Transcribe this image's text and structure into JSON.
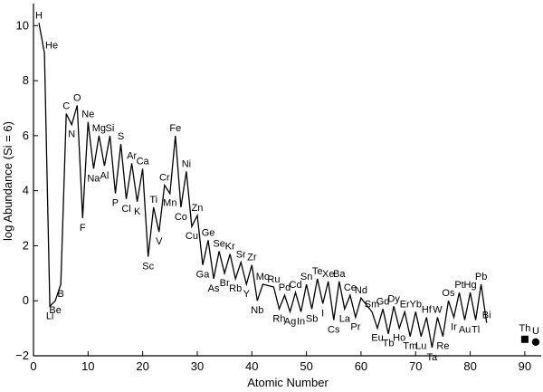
{
  "chart_data": {
    "type": "line",
    "title": "",
    "xlabel": "Atomic Number",
    "ylabel": "log Abundance (Si = 6)",
    "xlim": [
      0,
      93
    ],
    "ylim": [
      -2,
      10.8
    ],
    "x_ticks": [
      0,
      10,
      20,
      30,
      40,
      50,
      60,
      70,
      80,
      90
    ],
    "y_ticks": [
      -2,
      0,
      2,
      4,
      6,
      8,
      10
    ],
    "grid": false,
    "legend": "none",
    "series": [
      {
        "points": [
          {
            "z": 1,
            "el": "H",
            "y": 10.1
          },
          {
            "z": 2,
            "el": "He",
            "y": 9.0
          },
          {
            "z": 3,
            "el": "Li",
            "y": -0.2
          },
          {
            "z": 4,
            "el": "Be",
            "y": 0.0
          },
          {
            "z": 5,
            "el": "B",
            "y": 0.6
          },
          {
            "z": 6,
            "el": "C",
            "y": 6.8
          },
          {
            "z": 7,
            "el": "N",
            "y": 6.4
          },
          {
            "z": 8,
            "el": "O",
            "y": 7.1
          },
          {
            "z": 9,
            "el": "F",
            "y": 3.0
          },
          {
            "z": 10,
            "el": "Ne",
            "y": 6.5
          },
          {
            "z": 11,
            "el": "Na",
            "y": 4.8
          },
          {
            "z": 12,
            "el": "Mg",
            "y": 6.0
          },
          {
            "z": 13,
            "el": "Al",
            "y": 4.9
          },
          {
            "z": 14,
            "el": "Si",
            "y": 6.0
          },
          {
            "z": 15,
            "el": "P",
            "y": 3.9
          },
          {
            "z": 16,
            "el": "S",
            "y": 5.7
          },
          {
            "z": 17,
            "el": "Cl",
            "y": 3.7
          },
          {
            "z": 18,
            "el": "Ar",
            "y": 5.0
          },
          {
            "z": 19,
            "el": "K",
            "y": 3.6
          },
          {
            "z": 20,
            "el": "Ca",
            "y": 4.8
          },
          {
            "z": 21,
            "el": "Sc",
            "y": 1.6
          },
          {
            "z": 22,
            "el": "Ti",
            "y": 3.4
          },
          {
            "z": 23,
            "el": "V",
            "y": 2.5
          },
          {
            "z": 24,
            "el": "Cr",
            "y": 4.2
          },
          {
            "z": 25,
            "el": "Mn",
            "y": 3.9
          },
          {
            "z": 26,
            "el": "Fe",
            "y": 6.0
          },
          {
            "z": 27,
            "el": "Co",
            "y": 3.4
          },
          {
            "z": 28,
            "el": "Ni",
            "y": 4.7
          },
          {
            "z": 29,
            "el": "Cu",
            "y": 2.7
          },
          {
            "z": 30,
            "el": "Zn",
            "y": 3.1
          },
          {
            "z": 31,
            "el": "Ga",
            "y": 1.3
          },
          {
            "z": 32,
            "el": "Ge",
            "y": 2.2
          },
          {
            "z": 33,
            "el": "As",
            "y": 0.8
          },
          {
            "z": 34,
            "el": "Se",
            "y": 1.8
          },
          {
            "z": 35,
            "el": "Br",
            "y": 1.0
          },
          {
            "z": 36,
            "el": "Kr",
            "y": 1.7
          },
          {
            "z": 37,
            "el": "Rb",
            "y": 0.8
          },
          {
            "z": 38,
            "el": "Sr",
            "y": 1.4
          },
          {
            "z": 39,
            "el": "Y",
            "y": 0.6
          },
          {
            "z": 40,
            "el": "Zr",
            "y": 1.3
          },
          {
            "z": 41,
            "el": "Nb",
            "y": 0.0
          },
          {
            "z": 42,
            "el": "Mo",
            "y": 0.6
          },
          {
            "z": 44,
            "el": "Ru",
            "y": 0.5
          },
          {
            "z": 45,
            "el": "Rh",
            "y": -0.3
          },
          {
            "z": 46,
            "el": "Pd",
            "y": 0.2
          },
          {
            "z": 47,
            "el": "Ag",
            "y": -0.4
          },
          {
            "z": 48,
            "el": "Cd",
            "y": 0.3
          },
          {
            "z": 49,
            "el": "In",
            "y": -0.4
          },
          {
            "z": 50,
            "el": "Sn",
            "y": 0.6
          },
          {
            "z": 51,
            "el": "Sb",
            "y": -0.3
          },
          {
            "z": 52,
            "el": "Te",
            "y": 0.8
          },
          {
            "z": 53,
            "el": "I",
            "y": -0.1
          },
          {
            "z": 54,
            "el": "Xe",
            "y": 0.7
          },
          {
            "z": 55,
            "el": "Cs",
            "y": -0.7
          },
          {
            "z": 56,
            "el": "Ba",
            "y": 0.7
          },
          {
            "z": 57,
            "el": "La",
            "y": -0.3
          },
          {
            "z": 58,
            "el": "Ce",
            "y": 0.2
          },
          {
            "z": 59,
            "el": "Pr",
            "y": -0.6
          },
          {
            "z": 60,
            "el": "Nd",
            "y": 0.1
          },
          {
            "z": 62,
            "el": "Sm",
            "y": -0.4
          },
          {
            "z": 63,
            "el": "Eu",
            "y": -1.0
          },
          {
            "z": 64,
            "el": "Gd",
            "y": -0.3
          },
          {
            "z": 65,
            "el": "Tb",
            "y": -1.2
          },
          {
            "z": 66,
            "el": "Dy",
            "y": -0.2
          },
          {
            "z": 67,
            "el": "Ho",
            "y": -1.0
          },
          {
            "z": 68,
            "el": "Er",
            "y": -0.4
          },
          {
            "z": 69,
            "el": "Tm",
            "y": -1.3
          },
          {
            "z": 70,
            "el": "Yb",
            "y": -0.4
          },
          {
            "z": 71,
            "el": "Lu",
            "y": -1.3
          },
          {
            "z": 72,
            "el": "Hf",
            "y": -0.6
          },
          {
            "z": 73,
            "el": "Ta",
            "y": -1.7
          },
          {
            "z": 74,
            "el": "W",
            "y": -0.6
          },
          {
            "z": 75,
            "el": "Re",
            "y": -1.3
          },
          {
            "z": 76,
            "el": "Os",
            "y": 0.0
          },
          {
            "z": 77,
            "el": "Ir",
            "y": -0.6
          },
          {
            "z": 78,
            "el": "Pt",
            "y": 0.3
          },
          {
            "z": 79,
            "el": "Au",
            "y": -0.7
          },
          {
            "z": 80,
            "el": "Hg",
            "y": 0.3
          },
          {
            "z": 81,
            "el": "Tl",
            "y": -0.7
          },
          {
            "z": 82,
            "el": "Pb",
            "y": 0.6
          },
          {
            "z": 83,
            "el": "Bi",
            "y": -0.8
          }
        ]
      }
    ],
    "markers": [
      {
        "z": 90,
        "el": "Th",
        "y": -1.4,
        "shape": "square"
      },
      {
        "z": 92,
        "el": "U",
        "y": -1.5,
        "shape": "circle"
      }
    ]
  }
}
